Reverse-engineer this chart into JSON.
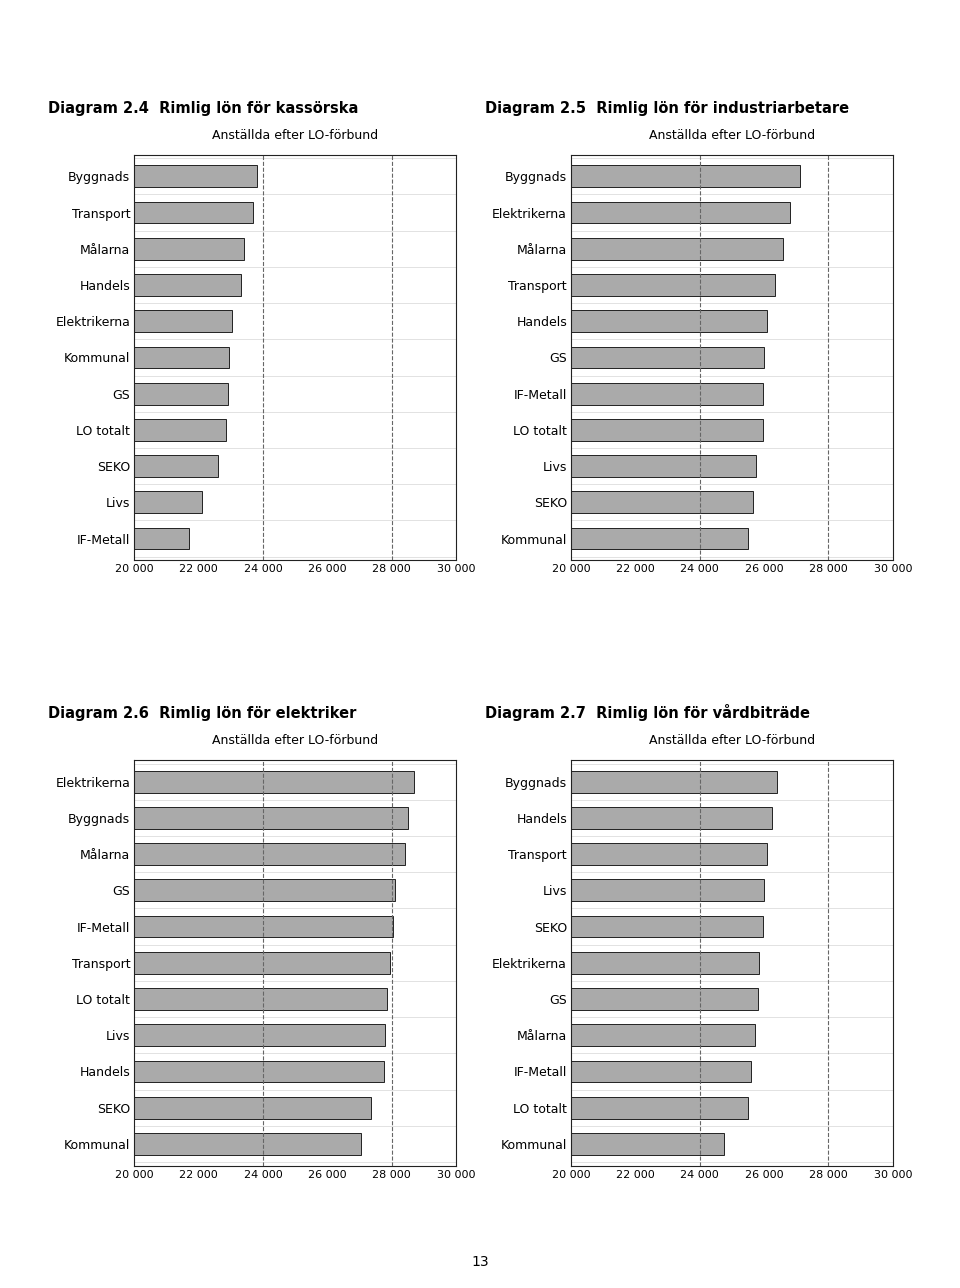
{
  "chart24": {
    "title_bold": "Diagram 2.4  Rimlig lön för kassörska",
    "subtitle": "Anställda efter LO-förbund",
    "categories": [
      "Byggnads",
      "Transport",
      "Målarna",
      "Handels",
      "Elektrikerna",
      "Kommunal",
      "GS",
      "LO totalt",
      "SEKO",
      "Livs",
      "IF-Metall"
    ],
    "values": [
      23800,
      23700,
      23400,
      23300,
      23050,
      22950,
      22900,
      22850,
      22600,
      22100,
      21700
    ]
  },
  "chart25": {
    "title_bold": "Diagram 2.5  Rimlig lön för industriarbetare",
    "subtitle": "Anställda efter LO-förbund",
    "categories": [
      "Byggnads",
      "Elektrikerna",
      "Målarna",
      "Transport",
      "Handels",
      "GS",
      "IF-Metall",
      "LO totalt",
      "Livs",
      "SEKO",
      "Kommunal"
    ],
    "values": [
      27100,
      26800,
      26600,
      26350,
      26100,
      26000,
      25950,
      25950,
      25750,
      25650,
      25500
    ]
  },
  "chart26": {
    "title_bold": "Diagram 2.6  Rimlig lön för elektriker",
    "subtitle": "Anställda efter LO-förbund",
    "categories": [
      "Elektrikerna",
      "Byggnads",
      "Målarna",
      "GS",
      "IF-Metall",
      "Transport",
      "LO totalt",
      "Livs",
      "Handels",
      "SEKO",
      "Kommunal"
    ],
    "values": [
      28700,
      28500,
      28400,
      28100,
      28050,
      27950,
      27850,
      27800,
      27750,
      27350,
      27050
    ]
  },
  "chart27": {
    "title_bold": "Diagram 2.7  Rimlig lön för vårdbiträde",
    "subtitle": "Anställda efter LO-förbund",
    "categories": [
      "Byggnads",
      "Handels",
      "Transport",
      "Livs",
      "SEKO",
      "Elektrikerna",
      "GS",
      "Målarna",
      "IF-Metall",
      "LO totalt",
      "Kommunal"
    ],
    "values": [
      26400,
      26250,
      26100,
      26000,
      25950,
      25850,
      25800,
      25700,
      25600,
      25500,
      24750
    ]
  },
  "bar_color": "#aaaaaa",
  "bar_edge_color": "#222222",
  "xlim": [
    20000,
    30000
  ],
  "xticks": [
    20000,
    22000,
    24000,
    26000,
    28000,
    30000
  ],
  "xticklabels": [
    "20 000",
    "22 000",
    "24 000",
    "26 000",
    "28 000",
    "30 000"
  ],
  "dashed_lines": [
    24000,
    28000
  ],
  "bg_color": "#ffffff",
  "page_number": "13"
}
